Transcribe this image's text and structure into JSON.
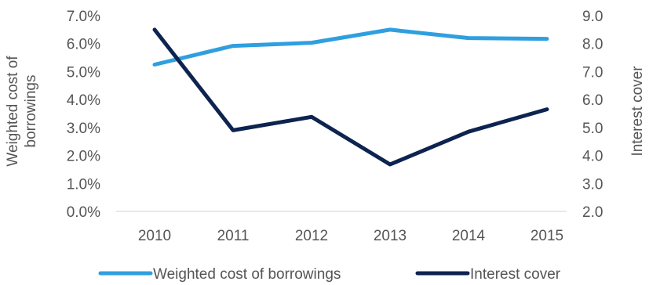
{
  "chart_data": {
    "type": "line",
    "categories": [
      "2010",
      "2011",
      "2012",
      "2013",
      "2014",
      "2015"
    ],
    "series": [
      {
        "name": "Weighted cost of borrowings",
        "axis": "left",
        "color": "#2f9fe0",
        "values": [
          5.25,
          5.92,
          6.03,
          6.5,
          6.2,
          6.17
        ]
      },
      {
        "name": "Interest cover",
        "axis": "right",
        "color": "#0d2350",
        "values": [
          8.5,
          4.9,
          5.38,
          3.68,
          4.85,
          5.65
        ]
      }
    ],
    "y_left": {
      "label": "Weighted cost of borrowings",
      "min": 0,
      "max": 7,
      "ticks": [
        "0.0%",
        "1.0%",
        "2.0%",
        "3.0%",
        "4.0%",
        "5.0%",
        "6.0%",
        "7.0%"
      ]
    },
    "y_right": {
      "label": "Interest cover",
      "min": 2,
      "max": 9,
      "ticks": [
        "2.0",
        "3.0",
        "4.0",
        "5.0",
        "6.0",
        "7.0",
        "8.0",
        "9.0"
      ]
    },
    "grid": false,
    "legend": "bottom"
  }
}
